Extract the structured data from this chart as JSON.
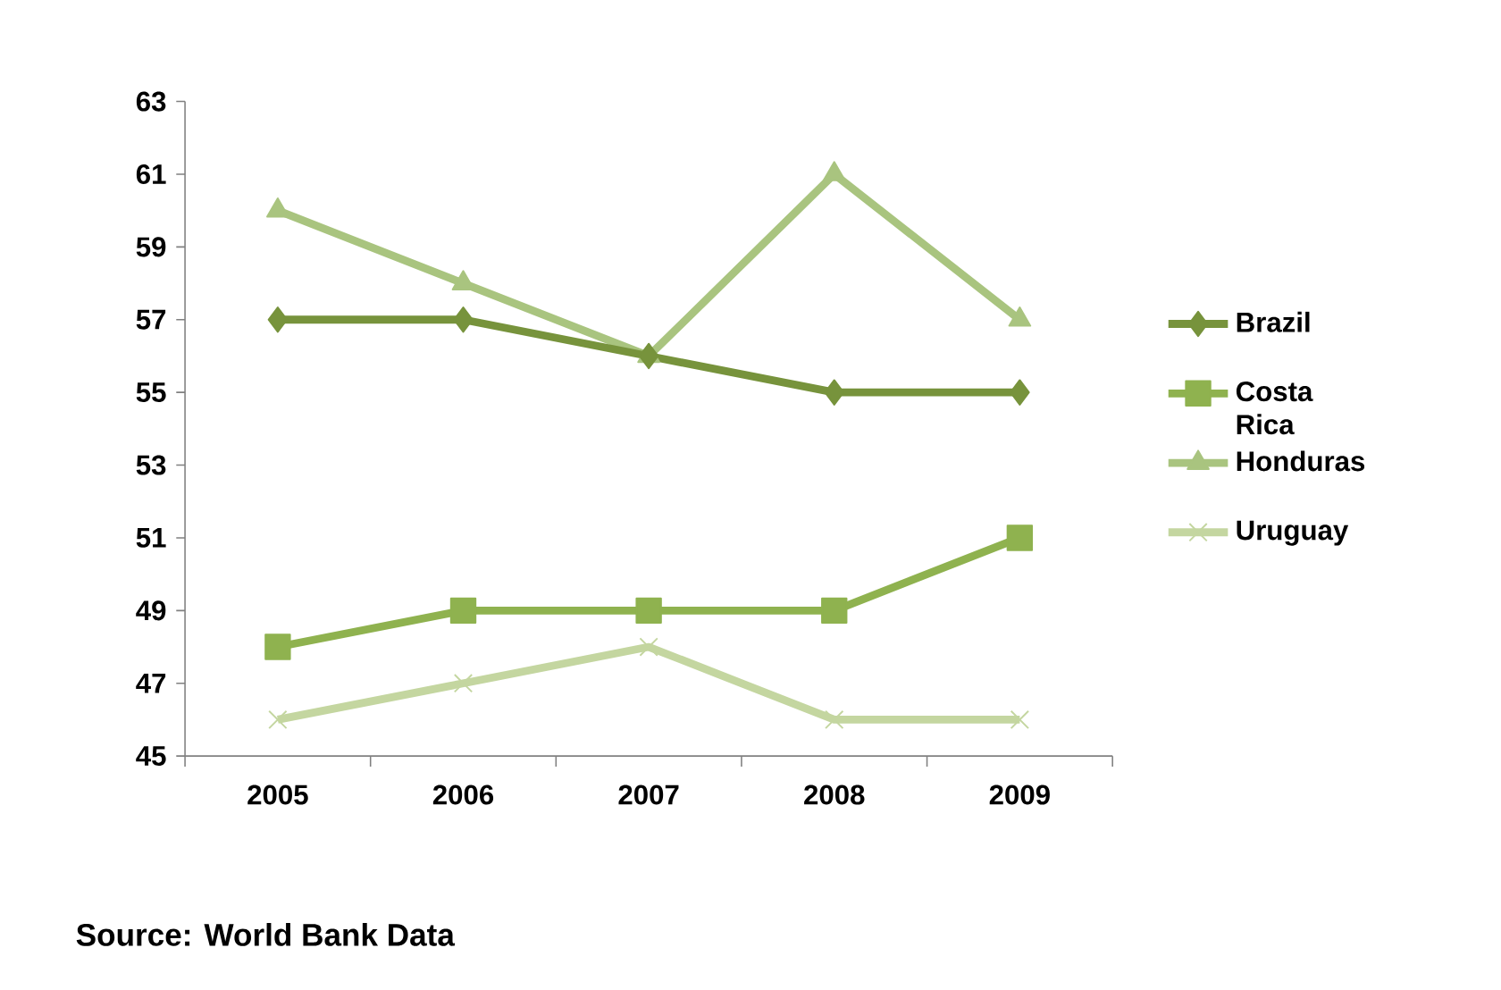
{
  "chart_data": {
    "type": "line",
    "categories": [
      "2005",
      "2006",
      "2007",
      "2008",
      "2009"
    ],
    "series": [
      {
        "name": "Brazil",
        "color": "#77933c",
        "marker": "diamond",
        "values": [
          57,
          57,
          56,
          55,
          55
        ]
      },
      {
        "name": "Costa Rica",
        "color": "#8fb24f",
        "marker": "square",
        "values": [
          48,
          49,
          49,
          49,
          51
        ]
      },
      {
        "name": "Honduras",
        "color": "#a9c47f",
        "marker": "triangle",
        "values": [
          60,
          58,
          56,
          61,
          57
        ]
      },
      {
        "name": "Uruguay",
        "color": "#c4d6a0",
        "marker": "cross",
        "values": [
          46,
          47,
          48,
          46,
          46
        ]
      }
    ],
    "ylim": [
      45,
      63
    ],
    "yticks": [
      45,
      47,
      49,
      51,
      53,
      55,
      57,
      59,
      61,
      63
    ],
    "legend": "right",
    "annotations": [
      "Source: World Bank Data"
    ]
  }
}
